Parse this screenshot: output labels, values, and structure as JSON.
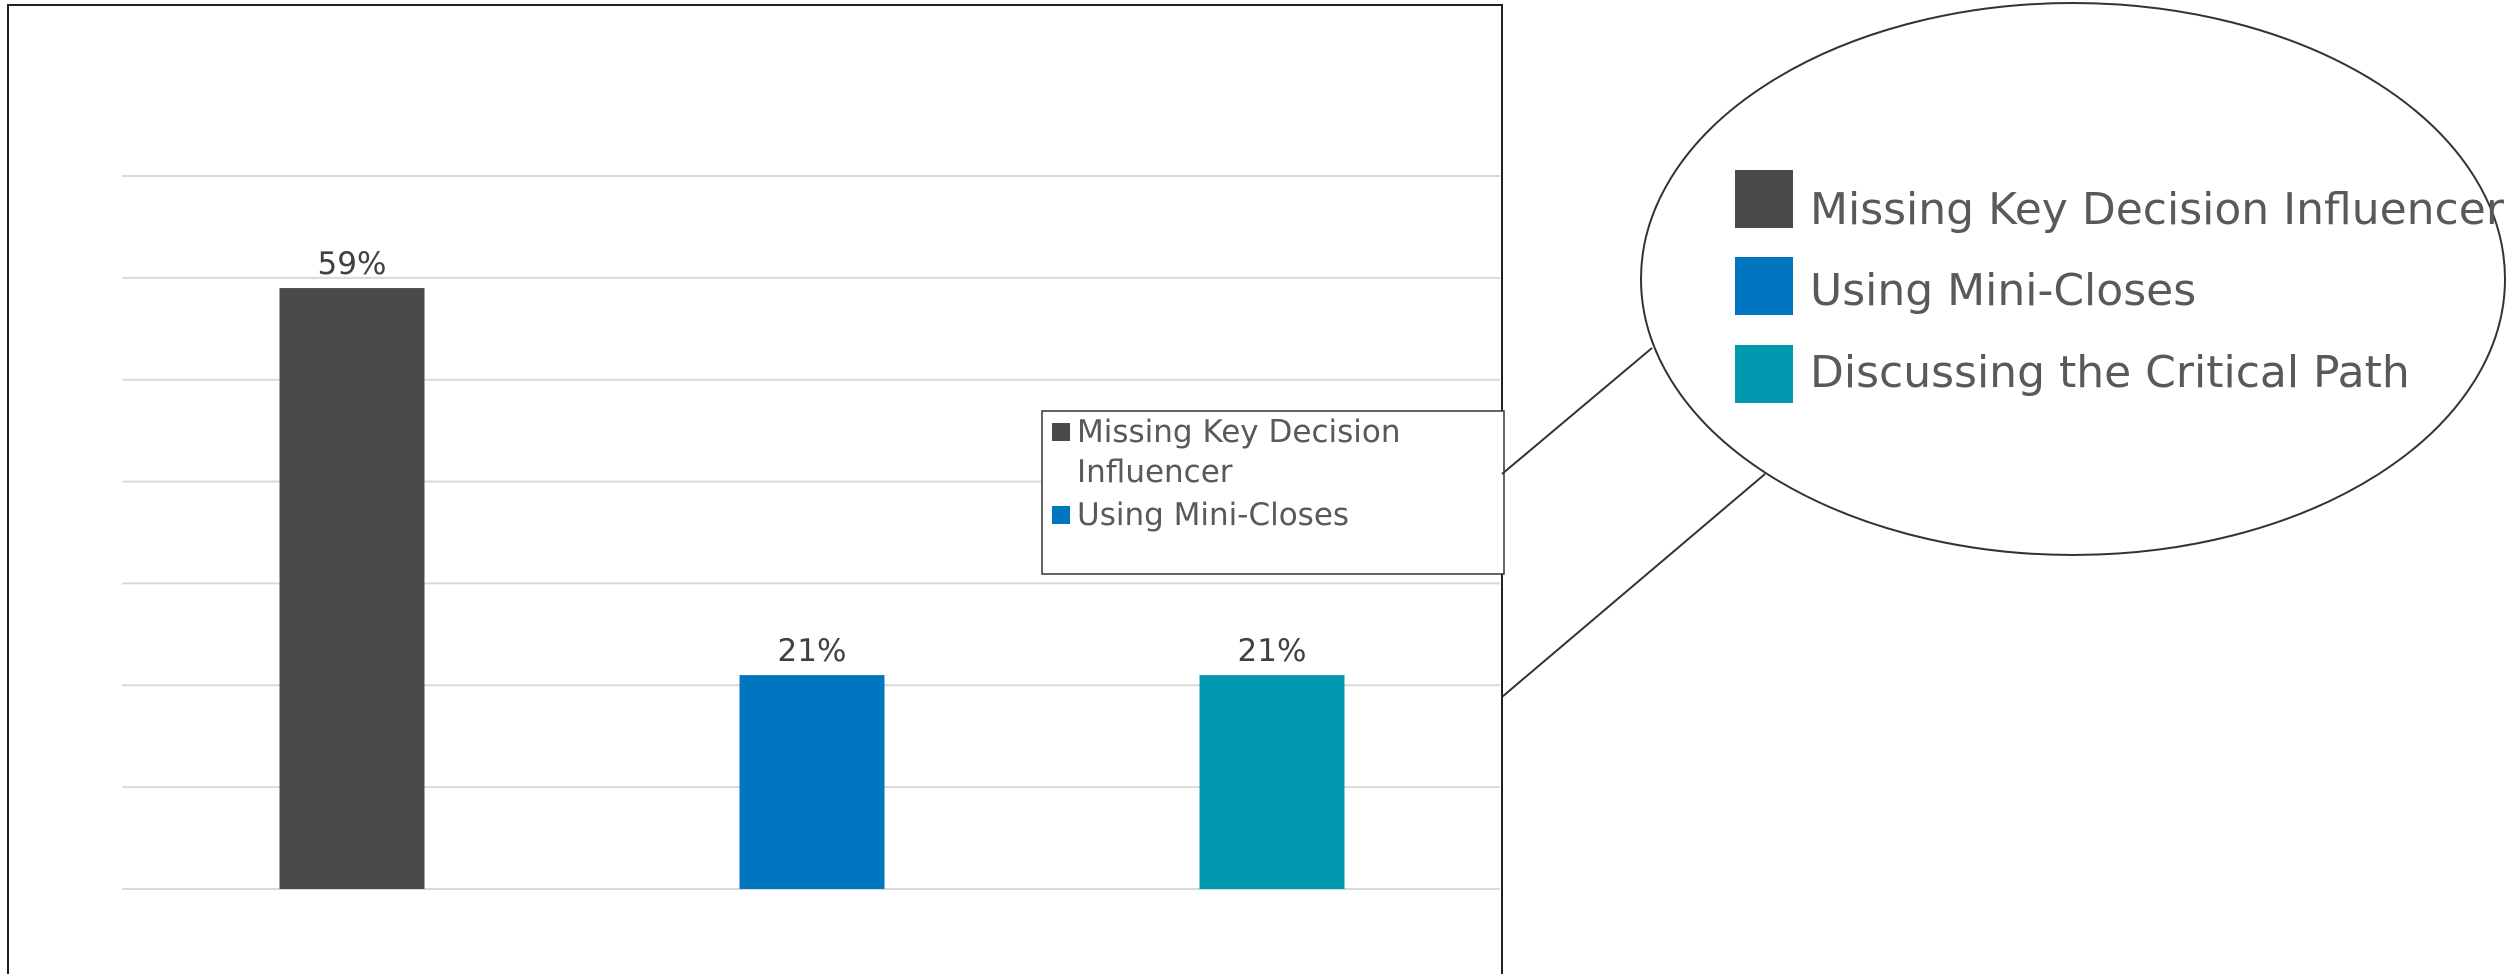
{
  "chart_data": {
    "type": "bar",
    "categories": [
      "Missing Key Decision Influencer",
      "Using Mini-Closes",
      "Discussing the Critical Path"
    ],
    "values": [
      59,
      21,
      21
    ],
    "data_labels": [
      "59%",
      "21%",
      "21%"
    ],
    "colors": [
      "#4a4a4a",
      "#0076c0",
      "#0099b0"
    ],
    "ylim": [
      0,
      70
    ],
    "grid": true,
    "legend": {
      "placement": "right",
      "items": [
        {
          "line1": "Missing Key Decision",
          "line2": "Influencer",
          "color": "#4a4a4a"
        },
        {
          "line1": "Using Mini-Closes",
          "line2": "",
          "color": "#0076c0"
        }
      ]
    },
    "callout_legend": {
      "items": [
        {
          "label": "Missing Key Decision Influencer",
          "color": "#4a4a4a"
        },
        {
          "label": "Using Mini-Closes",
          "color": "#0076c0"
        },
        {
          "label": "Discussing the Critical Path",
          "color": "#0099b0"
        }
      ]
    }
  }
}
